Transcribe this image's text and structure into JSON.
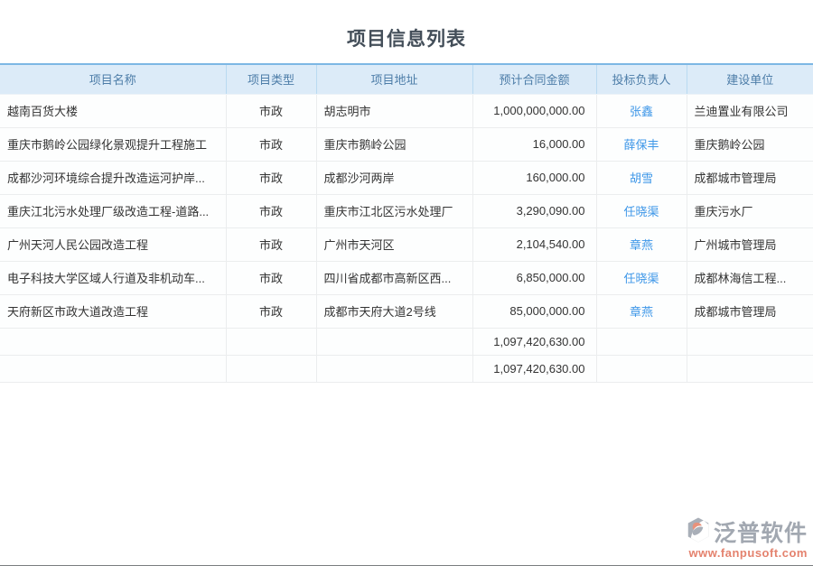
{
  "page": {
    "title": "项目信息列表"
  },
  "table": {
    "columns": [
      {
        "key": "name",
        "label": "项目名称",
        "align": "left"
      },
      {
        "key": "type",
        "label": "项目类型",
        "align": "center"
      },
      {
        "key": "address",
        "label": "项目地址",
        "align": "left"
      },
      {
        "key": "amount",
        "label": "预计合同金额",
        "align": "right"
      },
      {
        "key": "person",
        "label": "投标负责人",
        "align": "center"
      },
      {
        "key": "unit",
        "label": "建设单位",
        "align": "left"
      }
    ],
    "rows": [
      {
        "name": "越南百货大楼",
        "type": "市政",
        "address": "胡志明市",
        "amount": "1,000,000,000.00",
        "person": "张鑫",
        "unit": "兰迪置业有限公司"
      },
      {
        "name": "重庆市鹅岭公园绿化景观提升工程施工",
        "type": "市政",
        "address": "重庆市鹅岭公园",
        "amount": "16,000.00",
        "person": "薛保丰",
        "unit": "重庆鹅岭公园"
      },
      {
        "name": "成都沙河环境综合提升改造运河护岸...",
        "type": "市政",
        "address": "成都沙河两岸",
        "amount": "160,000.00",
        "person": "胡雪",
        "unit": "成都城市管理局"
      },
      {
        "name": "重庆江北污水处理厂级改造工程-道路...",
        "type": "市政",
        "address": "重庆市江北区污水处理厂",
        "amount": "3,290,090.00",
        "person": "任晓渠",
        "unit": "重庆污水厂"
      },
      {
        "name": "广州天河人民公园改造工程",
        "type": "市政",
        "address": "广州市天河区",
        "amount": "2,104,540.00",
        "person": "章燕",
        "unit": "广州城市管理局"
      },
      {
        "name": "电子科技大学区域人行道及非机动车...",
        "type": "市政",
        "address": "四川省成都市高新区西...",
        "amount": "6,850,000.00",
        "person": "任晓渠",
        "unit": "成都林海信工程..."
      },
      {
        "name": "天府新区市政大道改造工程",
        "type": "市政",
        "address": "成都市天府大道2号线",
        "amount": "85,000,000.00",
        "person": "章燕",
        "unit": "成都城市管理局"
      }
    ],
    "summary_rows": [
      {
        "name": "",
        "type": "",
        "address": "",
        "amount": "1,097,420,630.00",
        "person": "",
        "unit": ""
      },
      {
        "name": "",
        "type": "",
        "address": "",
        "amount": "1,097,420,630.00",
        "person": "",
        "unit": ""
      }
    ]
  },
  "watermark": {
    "brand": "泛普软件",
    "url": "www.fanpusoft.com"
  },
  "colors": {
    "header_bg": "#dcebf8",
    "header_top_border": "#7db7e4",
    "header_text": "#4d7da8",
    "body_border": "#ebedee",
    "body_text": "#333333",
    "link_blue": "#3e97e8",
    "title_text": "#434e59",
    "watermark_gray": "#a2a8b1",
    "watermark_orange": "#e4826e"
  }
}
